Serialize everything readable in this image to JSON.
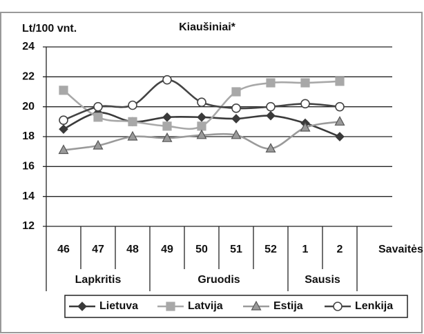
{
  "chart_data": {
    "type": "line",
    "title": "Kiaušiniai*",
    "y_label": "Lt/100 vnt.",
    "x_label": "Savaitės",
    "categories": [
      "46",
      "47",
      "48",
      "49",
      "50",
      "51",
      "52",
      "1",
      "2"
    ],
    "groups": [
      {
        "label": "Lapkritis",
        "count": 3
      },
      {
        "label": "Gruodis",
        "count": 4
      },
      {
        "label": "Sausis",
        "count": 2
      }
    ],
    "series": [
      {
        "name": "Lietuva",
        "color": "#3a3a3a",
        "marker": "diamond",
        "values": [
          18.5,
          19.6,
          19.0,
          19.3,
          19.3,
          19.2,
          19.4,
          18.9,
          18.0
        ]
      },
      {
        "name": "Latvija",
        "color": "#a8a8a8",
        "marker": "square",
        "values": [
          21.1,
          19.3,
          19.0,
          18.7,
          18.7,
          21.0,
          21.6,
          21.6,
          21.7
        ]
      },
      {
        "name": "Estija",
        "color": "#9a9a9a",
        "marker": "triangle",
        "values": [
          17.1,
          17.4,
          18.0,
          17.9,
          18.1,
          18.1,
          17.2,
          18.6,
          19.0
        ]
      },
      {
        "name": "Lenkija",
        "color": "#444444",
        "marker": "circle",
        "values": [
          19.1,
          20.0,
          20.1,
          21.8,
          20.3,
          19.9,
          20.0,
          20.2,
          20.0
        ]
      }
    ],
    "ylim": [
      12,
      24
    ],
    "yticks": [
      12,
      14,
      16,
      18,
      20,
      22,
      24
    ],
    "grid": true,
    "legend": "bottom"
  }
}
